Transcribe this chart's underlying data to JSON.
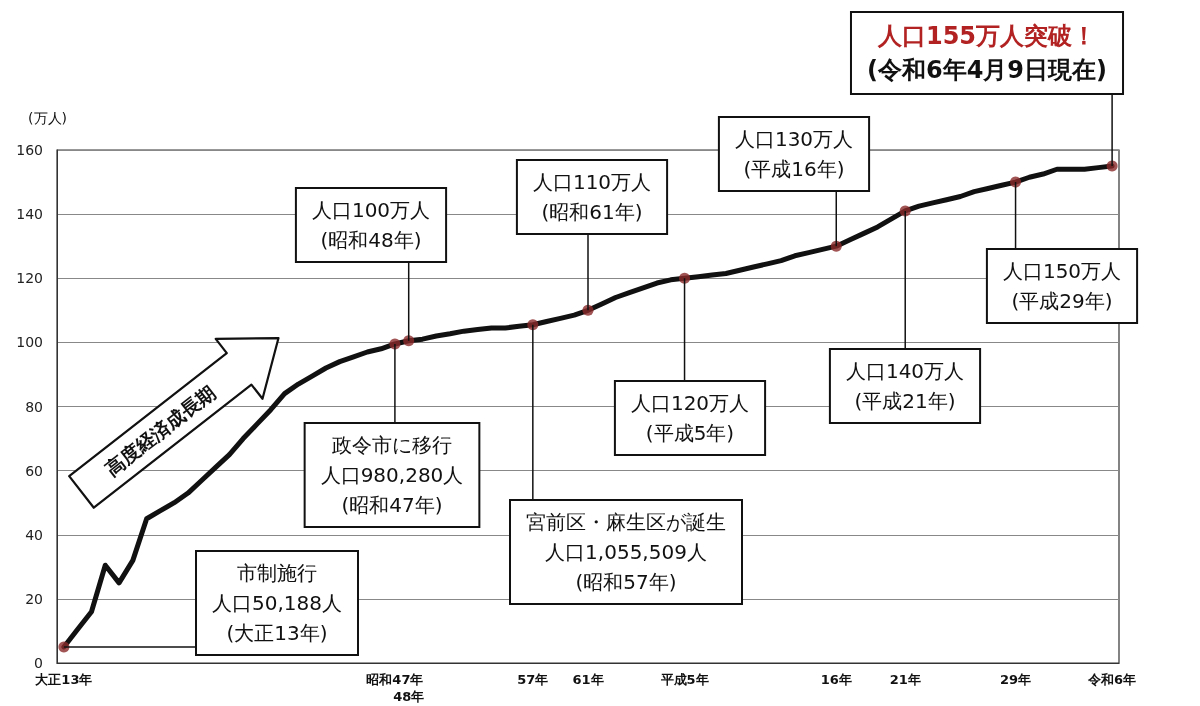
{
  "chart_data": {
    "type": "line",
    "ylabel": "(万人)",
    "categories": [
      "大正13年",
      null,
      null,
      null,
      null,
      null,
      null,
      null,
      null,
      null,
      null,
      null,
      null,
      null,
      null,
      null,
      null,
      null,
      null,
      null,
      null,
      null,
      null,
      null,
      "昭和47年",
      "48年",
      null,
      null,
      null,
      null,
      null,
      null,
      null,
      null,
      "57年",
      null,
      null,
      null,
      "61年",
      null,
      null,
      null,
      null,
      null,
      null,
      "平成5年",
      null,
      null,
      null,
      null,
      null,
      null,
      null,
      null,
      null,
      null,
      "16年",
      null,
      null,
      null,
      null,
      "21年",
      null,
      null,
      null,
      null,
      null,
      null,
      null,
      "29年",
      null,
      null,
      null,
      null,
      null,
      null,
      "令和6年"
    ],
    "series": [
      {
        "color": "#111111",
        "values": [
          5,
          10.5,
          16,
          30.5,
          25,
          32,
          45,
          47.5,
          50,
          53,
          57,
          61,
          65,
          70,
          74.5,
          79,
          84,
          87,
          89.5,
          92,
          94,
          95.5,
          97,
          98,
          99.5,
          100.5,
          101,
          102,
          102.7,
          103.5,
          104,
          104.5,
          104.5,
          105,
          105.5,
          106.5,
          107.5,
          108.5,
          110,
          112,
          114,
          115.5,
          117,
          118.5,
          119.5,
          120,
          120.5,
          121,
          121.5,
          122.5,
          123.5,
          124.5,
          125.5,
          127,
          128,
          129,
          130,
          132,
          134,
          136,
          138.5,
          141,
          142.5,
          143.5,
          144.5,
          145.5,
          147,
          148,
          149,
          150,
          151.5,
          152.5,
          154,
          154,
          154,
          154.5,
          155
        ]
      },
      {
        "type": "scatter",
        "marker": "circle",
        "color": "#8b2a2a",
        "values": [
          5,
          null,
          null,
          null,
          null,
          null,
          null,
          null,
          null,
          null,
          null,
          null,
          null,
          null,
          null,
          null,
          null,
          null,
          null,
          null,
          null,
          null,
          null,
          null,
          99.5,
          100.5,
          null,
          null,
          null,
          null,
          null,
          null,
          null,
          null,
          105.5,
          null,
          null,
          null,
          110,
          null,
          null,
          null,
          null,
          null,
          null,
          120,
          null,
          null,
          null,
          null,
          null,
          null,
          null,
          null,
          null,
          null,
          130,
          null,
          null,
          null,
          null,
          141,
          null,
          null,
          null,
          null,
          null,
          null,
          null,
          150,
          null,
          null,
          null,
          null,
          null,
          null,
          155
        ]
      }
    ],
    "ylim": [
      0,
      160
    ],
    "yticks": [
      0,
      20,
      40,
      60,
      80,
      100,
      120,
      140,
      160
    ],
    "grid": "y",
    "marker": "none",
    "line_style": "solid",
    "annotations": [
      {
        "text": "市制施行人口50,188人(大正13年)",
        "x": "大正13年",
        "y": 5
      },
      {
        "text": "政令市に移行人口980,280人(昭和47年)",
        "x": "昭和47年",
        "y": 99.5
      },
      {
        "text": "人口100万人(昭和48年)",
        "x": "48年",
        "y": 100.5
      },
      {
        "text": "宮前区・麻生区が誕生人口1,055,509人(昭和57年)",
        "x": "57年",
        "y": 105.5
      },
      {
        "text": "人口110万人(昭和61年)",
        "x": "61年",
        "y": 110
      },
      {
        "text": "人口120万人(平成5年)",
        "x": "平成5年",
        "y": 120
      },
      {
        "text": "人口130万人(平成16年)",
        "x": "16年",
        "y": 130
      },
      {
        "text": "人口140万人(平成21年)",
        "x": "21年",
        "y": 141
      },
      {
        "text": "人口150万人(平成29年)",
        "x": "29年",
        "y": 150
      },
      {
        "text": "人口155万人突破！(令和6年4月9日現在)",
        "x": "令和6年",
        "y": 155
      },
      "高度経済成長期"
    ]
  }
}
